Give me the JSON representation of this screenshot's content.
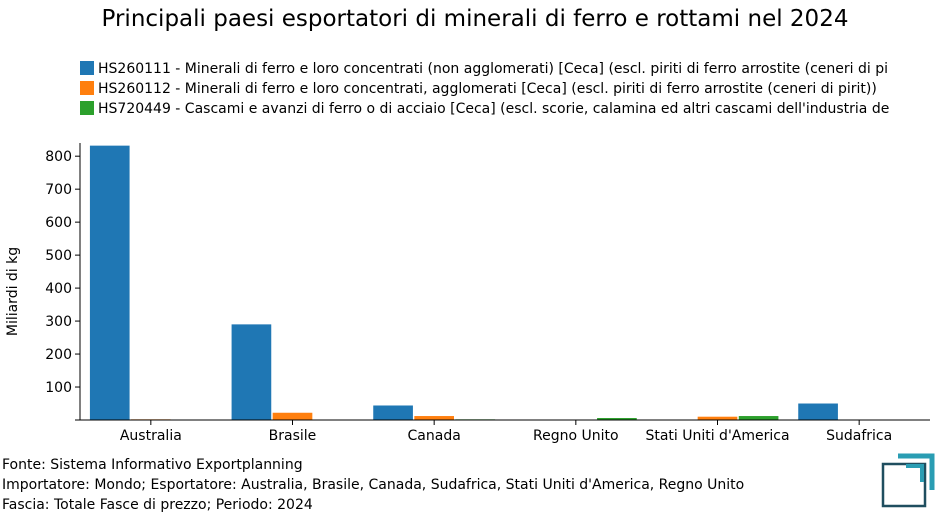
{
  "chart_data": {
    "type": "bar",
    "title": "Principali paesi esportatori di minerali di ferro e rottami nel 2024",
    "ylabel": "Miliardi di kg",
    "ylim": [
      0,
      840
    ],
    "yticks": [
      100,
      200,
      300,
      400,
      500,
      600,
      700,
      800
    ],
    "categories": [
      "Australia",
      "Brasile",
      "Canada",
      "Regno Unito",
      "Stati Uniti d'America",
      "Sudafrica"
    ],
    "series": [
      {
        "name": "HS260111 - Minerali di ferro e loro concentrati (non agglomerati) [Ceca] (escl. piriti di ferro arrostite (ceneri di pi",
        "color": "#1f77b4",
        "values": [
          832,
          290,
          44,
          0,
          0,
          50
        ]
      },
      {
        "name": "HS260112 - Minerali di ferro e loro concentrati, agglomerati [Ceca] (escl. piriti di ferro arrostite (ceneri di pirit))",
        "color": "#ff7f0e",
        "values": [
          2,
          22,
          12,
          0,
          10,
          0
        ]
      },
      {
        "name": "HS720449 - Cascami e avanzi di ferro o di acciaio [Ceca] (escl. scorie, calamina ed altri cascami dell'industria de",
        "color": "#2ca02c",
        "values": [
          0,
          0,
          2,
          6,
          12,
          0
        ]
      }
    ],
    "grid": false,
    "legend_position": "top"
  },
  "footer": {
    "source": "Fonte: Sistema Informativo Exportplanning",
    "importer": "Importatore: Mondo; Esportatore: Australia, Brasile, Canada, Sudafrica, Stati Uniti d'America, Regno Unito",
    "range": "Fascia: Totale Fasce di prezzo; Periodo: 2024"
  },
  "logo": {
    "icon": "exportplanning-logo-icon",
    "colors": [
      "#2a9db3",
      "#1f4e5f"
    ]
  }
}
